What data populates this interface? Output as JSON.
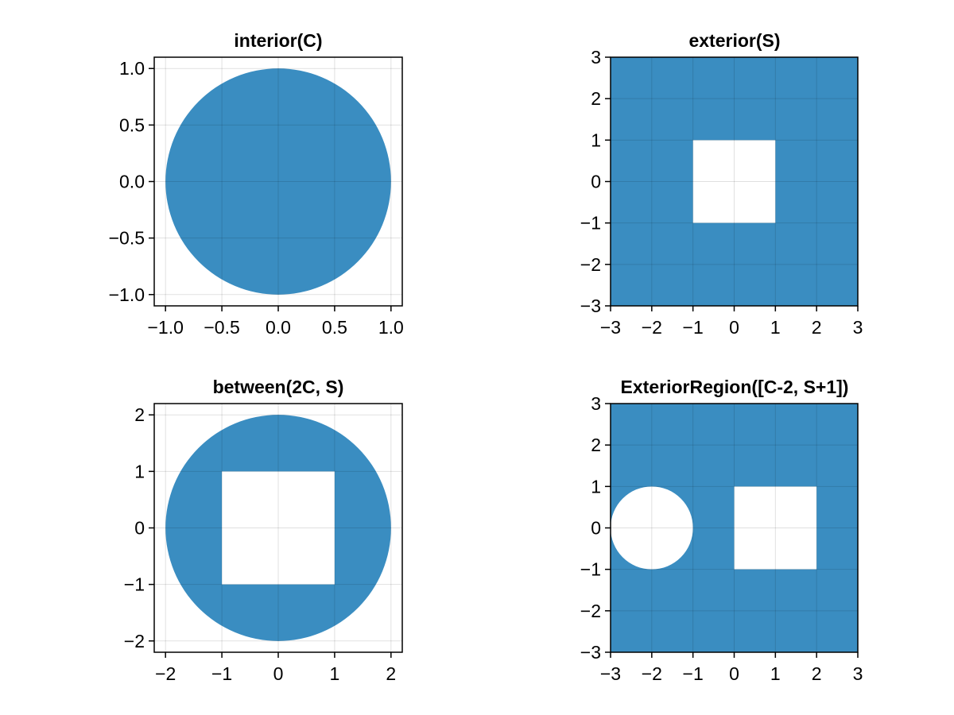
{
  "chart_data": [
    {
      "type": "area",
      "title": "interior(C)",
      "xlim": [
        -1.1,
        1.1
      ],
      "ylim": [
        -1.1,
        1.1
      ],
      "xticks": [
        -1.0,
        -0.5,
        0.0,
        0.5,
        1.0
      ],
      "yticks": [
        -1.0,
        -0.5,
        0.0,
        0.5,
        1.0
      ],
      "xtick_labels": [
        "−1.0",
        "−0.5",
        "0.0",
        "0.5",
        "1.0"
      ],
      "ytick_labels": [
        "−1.0",
        "−0.5",
        "0.0",
        "0.5",
        "1.0"
      ],
      "grid": true,
      "fill_region": {
        "kind": "inside",
        "shapes": [
          {
            "shape": "circle",
            "cx": 0,
            "cy": 0,
            "r": 1
          }
        ]
      }
    },
    {
      "type": "area",
      "title": "exterior(S)",
      "xlim": [
        -3,
        3
      ],
      "ylim": [
        -3,
        3
      ],
      "xticks": [
        -3,
        -2,
        -1,
        0,
        1,
        2,
        3
      ],
      "yticks": [
        -3,
        -2,
        -1,
        0,
        1,
        2,
        3
      ],
      "xtick_labels": [
        "−3",
        "−2",
        "−1",
        "0",
        "1",
        "2",
        "3"
      ],
      "ytick_labels": [
        "−3",
        "−2",
        "−1",
        "0",
        "1",
        "2",
        "3"
      ],
      "grid": true,
      "fill_region": {
        "kind": "outside",
        "shapes": [
          {
            "shape": "square",
            "x0": -1,
            "x1": 1,
            "y0": -1,
            "y1": 1
          }
        ]
      }
    },
    {
      "type": "area",
      "title": "between(2C, S)",
      "xlim": [
        -2.2,
        2.2
      ],
      "ylim": [
        -2.2,
        2.2
      ],
      "xticks": [
        -2,
        -1,
        0,
        1,
        2
      ],
      "yticks": [
        -2,
        -1,
        0,
        1,
        2
      ],
      "xtick_labels": [
        "−2",
        "−1",
        "0",
        "1",
        "2"
      ],
      "ytick_labels": [
        "−2",
        "−1",
        "0",
        "1",
        "2"
      ],
      "grid": true,
      "fill_region": {
        "kind": "between",
        "outer": {
          "shape": "circle",
          "cx": 0,
          "cy": 0,
          "r": 2
        },
        "holes": [
          {
            "shape": "square",
            "x0": -1,
            "x1": 1,
            "y0": -1,
            "y1": 1
          }
        ]
      }
    },
    {
      "type": "area",
      "title": "ExteriorRegion([C-2, S+1])",
      "xlim": [
        -3,
        3
      ],
      "ylim": [
        -3,
        3
      ],
      "xticks": [
        -3,
        -2,
        -1,
        0,
        1,
        2,
        3
      ],
      "yticks": [
        -3,
        -2,
        -1,
        0,
        1,
        2,
        3
      ],
      "xtick_labels": [
        "−3",
        "−2",
        "−1",
        "0",
        "1",
        "2",
        "3"
      ],
      "ytick_labels": [
        "−3",
        "−2",
        "−1",
        "0",
        "1",
        "2",
        "3"
      ],
      "grid": true,
      "fill_region": {
        "kind": "outside",
        "shapes": [
          {
            "shape": "circle",
            "cx": -2,
            "cy": 0,
            "r": 1
          },
          {
            "shape": "square",
            "x0": 0,
            "x1": 2,
            "y0": -1,
            "y1": 1
          }
        ]
      }
    }
  ],
  "colors": {
    "fill": "#3a8dc1",
    "grid": "#e0e0e0",
    "axis": "#000000",
    "background": "#ffffff"
  }
}
